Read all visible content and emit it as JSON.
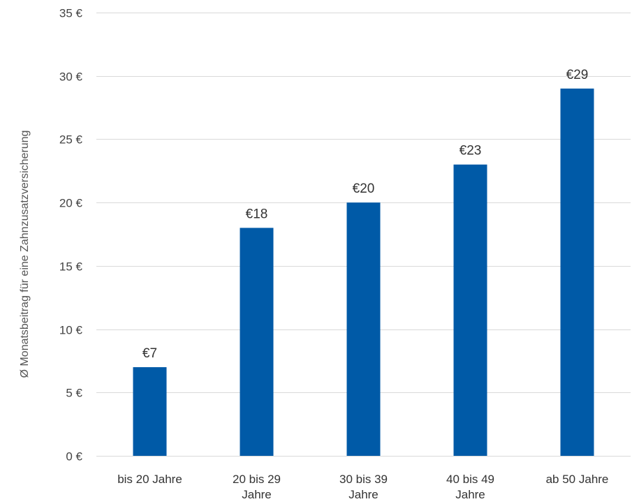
{
  "chart_data": {
    "type": "bar",
    "categories": [
      [
        "bis 20 Jahre"
      ],
      [
        "20 bis 29",
        "Jahre"
      ],
      [
        "30 bis 39",
        "Jahre"
      ],
      [
        "40 bis 49",
        "Jahre"
      ],
      [
        "ab 50 Jahre"
      ]
    ],
    "values": [
      7,
      18,
      20,
      23,
      29
    ],
    "data_labels": [
      "€7",
      "€18",
      "€20",
      "€23",
      "€29"
    ],
    "title": "",
    "xlabel": "",
    "ylabel": "Ø Monatsbeitrag für eine Zahnzusatzversicherung",
    "ylim": [
      0,
      35
    ],
    "yticks": [
      0,
      5,
      10,
      15,
      20,
      25,
      30,
      35
    ],
    "ytick_labels": [
      "0 €",
      "5 €",
      "10 €",
      "15 €",
      "20 €",
      "25 €",
      "30 €",
      "35 €"
    ],
    "grid": true,
    "legend": "none",
    "bar_color": "#005aa7"
  }
}
